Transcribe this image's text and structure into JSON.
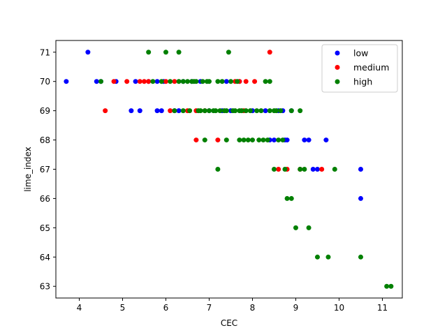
{
  "chart_data": {
    "type": "scatter",
    "title": "",
    "xlabel": "CEC",
    "ylabel": "lime_index",
    "xlim": [
      3.46,
      11.46
    ],
    "ylim": [
      62.6,
      71.4
    ],
    "xticks": [
      "4",
      "5",
      "6",
      "7",
      "8",
      "9",
      "10",
      "11"
    ],
    "yticks": [
      "63",
      "64",
      "65",
      "66",
      "67",
      "68",
      "69",
      "70",
      "71"
    ],
    "grid": false,
    "legend_position": "top-right",
    "series": [
      {
        "name": "low",
        "color": "#0000ff",
        "points": [
          [
            3.7,
            70
          ],
          [
            4.2,
            71
          ],
          [
            4.4,
            70
          ],
          [
            4.5,
            70
          ],
          [
            4.85,
            70
          ],
          [
            5.2,
            69
          ],
          [
            5.3,
            70
          ],
          [
            5.4,
            69
          ],
          [
            5.6,
            70
          ],
          [
            5.8,
            69
          ],
          [
            5.8,
            70
          ],
          [
            5.9,
            69
          ],
          [
            5.95,
            70
          ],
          [
            6.2,
            69
          ],
          [
            6.3,
            69
          ],
          [
            6.4,
            70
          ],
          [
            6.6,
            70
          ],
          [
            6.8,
            70
          ],
          [
            7.0,
            69
          ],
          [
            7.3,
            69
          ],
          [
            7.4,
            70
          ],
          [
            7.5,
            69
          ],
          [
            7.7,
            70
          ],
          [
            8.0,
            69
          ],
          [
            8.3,
            69
          ],
          [
            8.4,
            68
          ],
          [
            8.5,
            68
          ],
          [
            8.6,
            69
          ],
          [
            8.7,
            69
          ],
          [
            8.75,
            68
          ],
          [
            8.8,
            68
          ],
          [
            8.9,
            69
          ],
          [
            9.2,
            68
          ],
          [
            9.3,
            68
          ],
          [
            9.4,
            67
          ],
          [
            9.5,
            67
          ],
          [
            9.7,
            68
          ],
          [
            10.5,
            67
          ],
          [
            10.5,
            66
          ]
        ]
      },
      {
        "name": "medium",
        "color": "#ff0000",
        "points": [
          [
            4.6,
            69
          ],
          [
            4.8,
            70
          ],
          [
            5.1,
            70
          ],
          [
            5.4,
            70
          ],
          [
            5.5,
            70
          ],
          [
            5.6,
            70
          ],
          [
            6.0,
            70
          ],
          [
            6.1,
            69
          ],
          [
            6.2,
            70
          ],
          [
            6.5,
            69
          ],
          [
            6.7,
            68
          ],
          [
            6.7,
            69
          ],
          [
            6.9,
            69
          ],
          [
            7.2,
            68
          ],
          [
            7.6,
            70
          ],
          [
            7.7,
            70
          ],
          [
            7.8,
            69
          ],
          [
            7.85,
            70
          ],
          [
            8.05,
            70
          ],
          [
            8.4,
            71
          ],
          [
            8.6,
            67
          ],
          [
            8.8,
            67
          ],
          [
            9.1,
            67
          ],
          [
            9.6,
            67
          ]
        ]
      },
      {
        "name": "high",
        "color": "#008000",
        "points": [
          [
            4.5,
            70
          ],
          [
            5.6,
            71
          ],
          [
            5.7,
            70
          ],
          [
            5.9,
            70
          ],
          [
            6.0,
            71
          ],
          [
            6.1,
            70
          ],
          [
            6.2,
            69
          ],
          [
            6.3,
            71
          ],
          [
            6.3,
            70
          ],
          [
            6.4,
            69
          ],
          [
            6.4,
            70
          ],
          [
            6.5,
            70
          ],
          [
            6.55,
            69
          ],
          [
            6.6,
            70
          ],
          [
            6.65,
            70
          ],
          [
            6.7,
            70
          ],
          [
            6.75,
            69
          ],
          [
            6.8,
            69
          ],
          [
            6.85,
            70
          ],
          [
            6.9,
            69
          ],
          [
            6.9,
            68
          ],
          [
            6.95,
            70
          ],
          [
            7.0,
            70
          ],
          [
            7.0,
            69
          ],
          [
            7.1,
            69
          ],
          [
            7.15,
            69
          ],
          [
            7.2,
            70
          ],
          [
            7.2,
            67
          ],
          [
            7.25,
            69
          ],
          [
            7.3,
            70
          ],
          [
            7.35,
            69
          ],
          [
            7.4,
            68
          ],
          [
            7.4,
            69
          ],
          [
            7.45,
            71
          ],
          [
            7.5,
            70
          ],
          [
            7.55,
            69
          ],
          [
            7.6,
            69
          ],
          [
            7.65,
            70
          ],
          [
            7.7,
            69
          ],
          [
            7.7,
            68
          ],
          [
            7.75,
            69
          ],
          [
            7.8,
            68
          ],
          [
            7.85,
            69
          ],
          [
            7.9,
            68
          ],
          [
            7.95,
            69
          ],
          [
            8.0,
            68
          ],
          [
            8.1,
            69
          ],
          [
            8.15,
            68
          ],
          [
            8.2,
            69
          ],
          [
            8.25,
            68
          ],
          [
            8.3,
            70
          ],
          [
            8.35,
            68
          ],
          [
            8.4,
            69
          ],
          [
            8.4,
            70
          ],
          [
            8.5,
            69
          ],
          [
            8.5,
            67
          ],
          [
            8.55,
            69
          ],
          [
            8.6,
            68
          ],
          [
            8.65,
            69
          ],
          [
            8.7,
            68
          ],
          [
            8.75,
            67
          ],
          [
            8.8,
            66
          ],
          [
            8.9,
            66
          ],
          [
            8.9,
            69
          ],
          [
            9.0,
            65
          ],
          [
            9.1,
            69
          ],
          [
            9.1,
            67
          ],
          [
            9.2,
            67
          ],
          [
            9.3,
            65
          ],
          [
            9.5,
            64
          ],
          [
            9.75,
            64
          ],
          [
            9.9,
            67
          ],
          [
            10.5,
            64
          ],
          [
            11.1,
            63
          ],
          [
            11.2,
            63
          ]
        ]
      }
    ]
  }
}
